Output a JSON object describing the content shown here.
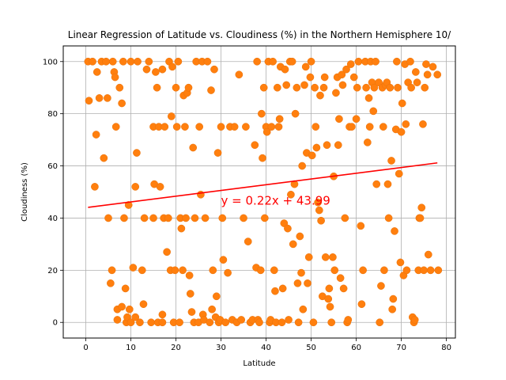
{
  "chart_data": {
    "type": "scatter",
    "title": "Linear Regression of Latitude vs. Cloudiness (%) in the Northern Hemisphere 10/",
    "xlabel": "Latitude",
    "ylabel": "Cloudiness (%)",
    "xlim": [
      -5,
      82
    ],
    "ylim": [
      -6,
      106
    ],
    "xticks": [
      0,
      10,
      20,
      30,
      40,
      50,
      60,
      70,
      80
    ],
    "yticks": [
      0,
      20,
      40,
      60,
      80,
      100
    ],
    "grid": true,
    "point_color": "#ff7f0e",
    "line_color": "#ff0000",
    "regression": {
      "equation": "y = 0.22x + 43.99",
      "slope": 0.22,
      "intercept": 43.99,
      "x_range": [
        0.5,
        78
      ],
      "label_position": [
        30,
        47
      ]
    },
    "points": [
      [
        0.5,
        100
      ],
      [
        0.7,
        85
      ],
      [
        1.5,
        100
      ],
      [
        2,
        52
      ],
      [
        2.3,
        72
      ],
      [
        2.5,
        96
      ],
      [
        3,
        86
      ],
      [
        3.5,
        100
      ],
      [
        4,
        63
      ],
      [
        4.5,
        100
      ],
      [
        4.8,
        86
      ],
      [
        5,
        40
      ],
      [
        5.5,
        15
      ],
      [
        5.8,
        20
      ],
      [
        6,
        100
      ],
      [
        6.3,
        96
      ],
      [
        6.5,
        94
      ],
      [
        6.7,
        75
      ],
      [
        7,
        5
      ],
      [
        7,
        1
      ],
      [
        7.5,
        90
      ],
      [
        8,
        6
      ],
      [
        8,
        84
      ],
      [
        8.3,
        100
      ],
      [
        8.5,
        40
      ],
      [
        8.8,
        13
      ],
      [
        9,
        0
      ],
      [
        9.2,
        2
      ],
      [
        9.5,
        45
      ],
      [
        9.7,
        5
      ],
      [
        10,
        100
      ],
      [
        10,
        0
      ],
      [
        10.5,
        21
      ],
      [
        11,
        2
      ],
      [
        11,
        52
      ],
      [
        11.3,
        65
      ],
      [
        11.5,
        100
      ],
      [
        12,
        0
      ],
      [
        12.5,
        20
      ],
      [
        12.8,
        7
      ],
      [
        13,
        40
      ],
      [
        13.5,
        97
      ],
      [
        14,
        100
      ],
      [
        14.5,
        0
      ],
      [
        15,
        40
      ],
      [
        15,
        75
      ],
      [
        15.2,
        53
      ],
      [
        15.5,
        96
      ],
      [
        15.8,
        90
      ],
      [
        16,
        0
      ],
      [
        16.2,
        75
      ],
      [
        16.5,
        52
      ],
      [
        17,
        3
      ],
      [
        17,
        0
      ],
      [
        17,
        97
      ],
      [
        17.3,
        40
      ],
      [
        17.5,
        75
      ],
      [
        18,
        27
      ],
      [
        18.3,
        40
      ],
      [
        18.5,
        100
      ],
      [
        18.8,
        20
      ],
      [
        19,
        79
      ],
      [
        19.2,
        98
      ],
      [
        19.5,
        0
      ],
      [
        19.8,
        20
      ],
      [
        20,
        90
      ],
      [
        20.2,
        75
      ],
      [
        20.5,
        100
      ],
      [
        20.8,
        0
      ],
      [
        21,
        40
      ],
      [
        21.2,
        36
      ],
      [
        21.5,
        20
      ],
      [
        21.7,
        87
      ],
      [
        22,
        75
      ],
      [
        22.2,
        40
      ],
      [
        22.5,
        88
      ],
      [
        22.8,
        90
      ],
      [
        23,
        18
      ],
      [
        23.2,
        11
      ],
      [
        23.5,
        4
      ],
      [
        23.8,
        67
      ],
      [
        24,
        0
      ],
      [
        24.2,
        40
      ],
      [
        24.5,
        100
      ],
      [
        25,
        0
      ],
      [
        25.2,
        75
      ],
      [
        25.5,
        49
      ],
      [
        25.8,
        100
      ],
      [
        26,
        3
      ],
      [
        26.2,
        1
      ],
      [
        26.5,
        40
      ],
      [
        27,
        100
      ],
      [
        27.5,
        0
      ],
      [
        27.8,
        89
      ],
      [
        28,
        5
      ],
      [
        28.2,
        20
      ],
      [
        28.5,
        97
      ],
      [
        28.8,
        2
      ],
      [
        29,
        10
      ],
      [
        29.3,
        65
      ],
      [
        29.5,
        0
      ],
      [
        29.8,
        1
      ],
      [
        30,
        75
      ],
      [
        30.3,
        40
      ],
      [
        30.5,
        24
      ],
      [
        31,
        0
      ],
      [
        31.5,
        19
      ],
      [
        32,
        75
      ],
      [
        32.5,
        1
      ],
      [
        33,
        75
      ],
      [
        33.5,
        0
      ],
      [
        34,
        95
      ],
      [
        34.5,
        1
      ],
      [
        35,
        40
      ],
      [
        35.5,
        75
      ],
      [
        36,
        31
      ],
      [
        36.5,
        0
      ],
      [
        37,
        1
      ],
      [
        37.5,
        68
      ],
      [
        37.8,
        21
      ],
      [
        38,
        100
      ],
      [
        38.2,
        1
      ],
      [
        38.5,
        0
      ],
      [
        38.8,
        20
      ],
      [
        39,
        80
      ],
      [
        39.2,
        63
      ],
      [
        39.5,
        90
      ],
      [
        39.7,
        40
      ],
      [
        40,
        75
      ],
      [
        40.2,
        73
      ],
      [
        40.5,
        100
      ],
      [
        40.8,
        0
      ],
      [
        41,
        1
      ],
      [
        41.2,
        75
      ],
      [
        41.5,
        100
      ],
      [
        41.8,
        20
      ],
      [
        42,
        12
      ],
      [
        42.2,
        0
      ],
      [
        42.5,
        90
      ],
      [
        42.8,
        75
      ],
      [
        43,
        78
      ],
      [
        43.2,
        98
      ],
      [
        43.5,
        0
      ],
      [
        43.7,
        13
      ],
      [
        44,
        38
      ],
      [
        44.2,
        97
      ],
      [
        44.5,
        91
      ],
      [
        44.8,
        36
      ],
      [
        45,
        1
      ],
      [
        45.3,
        100
      ],
      [
        45.5,
        49
      ],
      [
        45.8,
        100
      ],
      [
        46,
        30
      ],
      [
        46.3,
        53
      ],
      [
        46.5,
        80
      ],
      [
        46.8,
        90
      ],
      [
        47,
        15
      ],
      [
        47.2,
        0
      ],
      [
        47.5,
        33
      ],
      [
        47.8,
        19
      ],
      [
        48,
        60
      ],
      [
        48.2,
        5
      ],
      [
        48.5,
        91
      ],
      [
        48.8,
        98
      ],
      [
        49,
        65
      ],
      [
        49.2,
        15
      ],
      [
        49.5,
        25
      ],
      [
        49.8,
        94
      ],
      [
        50,
        100
      ],
      [
        50.2,
        64
      ],
      [
        50.5,
        0
      ],
      [
        50.8,
        90
      ],
      [
        51,
        75
      ],
      [
        51.2,
        67
      ],
      [
        51.5,
        46
      ],
      [
        51.8,
        43
      ],
      [
        52,
        87
      ],
      [
        52.2,
        39
      ],
      [
        52.5,
        10
      ],
      [
        52.8,
        90
      ],
      [
        53,
        94
      ],
      [
        53.2,
        25
      ],
      [
        53.5,
        68
      ],
      [
        53.8,
        9
      ],
      [
        54,
        13
      ],
      [
        54.2,
        6
      ],
      [
        54.5,
        0
      ],
      [
        54.8,
        25
      ],
      [
        55,
        56
      ],
      [
        55.2,
        20
      ],
      [
        55.5,
        88
      ],
      [
        55.8,
        94
      ],
      [
        56,
        68
      ],
      [
        56.2,
        78
      ],
      [
        56.5,
        17
      ],
      [
        56.8,
        95
      ],
      [
        57,
        91
      ],
      [
        57.2,
        13
      ],
      [
        57.5,
        40
      ],
      [
        57.8,
        97
      ],
      [
        58,
        0
      ],
      [
        58.2,
        1
      ],
      [
        58.5,
        75
      ],
      [
        58.8,
        99
      ],
      [
        59,
        75
      ],
      [
        59.5,
        94
      ],
      [
        60,
        78
      ],
      [
        60.2,
        90
      ],
      [
        60.5,
        100
      ],
      [
        61,
        37
      ],
      [
        61.2,
        7
      ],
      [
        61.5,
        20
      ],
      [
        62,
        100
      ],
      [
        62.2,
        90
      ],
      [
        62.5,
        69
      ],
      [
        62.8,
        86
      ],
      [
        63,
        75
      ],
      [
        63.2,
        100
      ],
      [
        63.5,
        92
      ],
      [
        63.8,
        81
      ],
      [
        64,
        90
      ],
      [
        64.3,
        100
      ],
      [
        64.5,
        53
      ],
      [
        65,
        92
      ],
      [
        65.2,
        0
      ],
      [
        65.5,
        14
      ],
      [
        65.8,
        90
      ],
      [
        66,
        75
      ],
      [
        66.2,
        20
      ],
      [
        66.5,
        91
      ],
      [
        66.8,
        92
      ],
      [
        67,
        53
      ],
      [
        67.2,
        40
      ],
      [
        67.5,
        90
      ],
      [
        67.8,
        62
      ],
      [
        68,
        5
      ],
      [
        68.2,
        9
      ],
      [
        68.5,
        35
      ],
      [
        68.8,
        74
      ],
      [
        69,
        100
      ],
      [
        69.2,
        90
      ],
      [
        69.5,
        57
      ],
      [
        69.8,
        23
      ],
      [
        70,
        73
      ],
      [
        70.2,
        84
      ],
      [
        70.5,
        18
      ],
      [
        70.8,
        99
      ],
      [
        71,
        76
      ],
      [
        71.2,
        20
      ],
      [
        71.5,
        92
      ],
      [
        72,
        100
      ],
      [
        72.2,
        90
      ],
      [
        72.5,
        2
      ],
      [
        72.8,
        0
      ],
      [
        73,
        1
      ],
      [
        73.2,
        96
      ],
      [
        73.5,
        92
      ],
      [
        73.8,
        20
      ],
      [
        74,
        40
      ],
      [
        74.2,
        40
      ],
      [
        74.5,
        44
      ],
      [
        74.8,
        76
      ],
      [
        75,
        20
      ],
      [
        75.2,
        90
      ],
      [
        75.5,
        99
      ],
      [
        75.8,
        95
      ],
      [
        76,
        26
      ],
      [
        76.5,
        20
      ],
      [
        77,
        98
      ],
      [
        78,
        95
      ],
      [
        78.2,
        20
      ]
    ]
  }
}
